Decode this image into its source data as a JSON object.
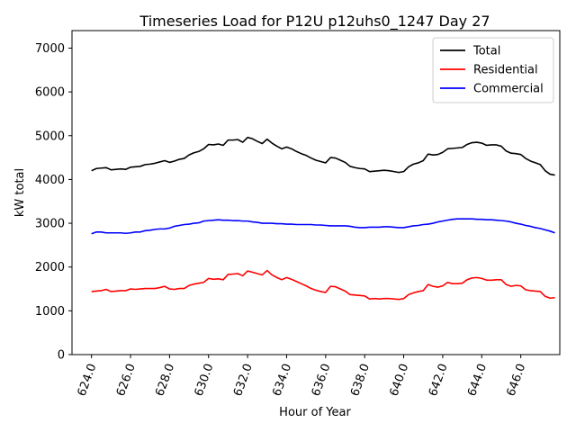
{
  "chart_data": {
    "type": "line",
    "title": "Timeseries Load for P12U p12uhs0_1247  Day 27",
    "xlabel": "Hour of Year",
    "ylabel": "kW total",
    "xlim": [
      623.0,
      648.0
    ],
    "ylim": [
      0,
      7400
    ],
    "xticks": [
      624.0,
      626.0,
      628.0,
      630.0,
      632.0,
      634.0,
      636.0,
      638.0,
      640.0,
      642.0,
      644.0,
      646.0
    ],
    "xtick_labels": [
      "624.0",
      "626.0",
      "628.0",
      "630.0",
      "632.0",
      "634.0",
      "636.0",
      "638.0",
      "640.0",
      "642.0",
      "644.0",
      "646.0"
    ],
    "yticks": [
      0,
      1000,
      2000,
      3000,
      4000,
      5000,
      6000,
      7000
    ],
    "ytick_labels": [
      "0",
      "1000",
      "2000",
      "3000",
      "4000",
      "5000",
      "6000",
      "7000"
    ],
    "legend_position": "top-right",
    "grid": false,
    "x": [
      624.0,
      624.25,
      624.5,
      624.75,
      625.0,
      625.25,
      625.5,
      625.75,
      626.0,
      626.25,
      626.5,
      626.75,
      627.0,
      627.25,
      627.5,
      627.75,
      628.0,
      628.25,
      628.5,
      628.75,
      629.0,
      629.25,
      629.5,
      629.75,
      630.0,
      630.25,
      630.5,
      630.75,
      631.0,
      631.25,
      631.5,
      631.75,
      632.0,
      632.25,
      632.5,
      632.75,
      633.0,
      633.25,
      633.5,
      633.75,
      634.0,
      634.25,
      634.5,
      634.75,
      635.0,
      635.25,
      635.5,
      635.75,
      636.0,
      636.25,
      636.5,
      636.75,
      637.0,
      637.25,
      637.5,
      637.75,
      638.0,
      638.25,
      638.5,
      638.75,
      639.0,
      639.25,
      639.5,
      639.75,
      640.0,
      640.25,
      640.5,
      640.75,
      641.0,
      641.25,
      641.5,
      641.75,
      642.0,
      642.25,
      642.5,
      642.75,
      643.0,
      643.25,
      643.5,
      643.75,
      644.0,
      644.25,
      644.5,
      644.75,
      645.0,
      645.25,
      645.5,
      645.75,
      646.0,
      646.25,
      646.5,
      646.75,
      647.0,
      647.25,
      647.5,
      647.75
    ],
    "series": [
      {
        "name": "Total",
        "color": "#000000",
        "values": [
          4200,
          4250,
          4260,
          4270,
          4220,
          4230,
          4240,
          4230,
          4280,
          4290,
          4300,
          4340,
          4350,
          4370,
          4400,
          4430,
          4390,
          4420,
          4460,
          4480,
          4560,
          4610,
          4640,
          4700,
          4800,
          4790,
          4810,
          4780,
          4900,
          4900,
          4910,
          4850,
          4960,
          4930,
          4870,
          4820,
          4920,
          4830,
          4760,
          4700,
          4740,
          4700,
          4640,
          4590,
          4550,
          4490,
          4440,
          4410,
          4380,
          4500,
          4490,
          4440,
          4390,
          4300,
          4270,
          4250,
          4240,
          4180,
          4190,
          4200,
          4210,
          4200,
          4180,
          4160,
          4180,
          4290,
          4350,
          4380,
          4430,
          4580,
          4560,
          4570,
          4620,
          4700,
          4710,
          4720,
          4730,
          4800,
          4840,
          4850,
          4830,
          4780,
          4790,
          4790,
          4760,
          4650,
          4600,
          4590,
          4570,
          4480,
          4420,
          4380,
          4340,
          4200,
          4120,
          4100
        ]
      },
      {
        "name": "Residential",
        "color": "#ff0000",
        "values": [
          1440,
          1450,
          1460,
          1490,
          1440,
          1450,
          1460,
          1460,
          1500,
          1490,
          1500,
          1510,
          1510,
          1510,
          1530,
          1560,
          1500,
          1490,
          1510,
          1510,
          1580,
          1610,
          1630,
          1650,
          1740,
          1720,
          1730,
          1710,
          1830,
          1840,
          1850,
          1800,
          1910,
          1880,
          1850,
          1820,
          1920,
          1820,
          1760,
          1710,
          1760,
          1720,
          1670,
          1620,
          1570,
          1510,
          1470,
          1440,
          1420,
          1560,
          1550,
          1500,
          1450,
          1370,
          1360,
          1350,
          1340,
          1270,
          1280,
          1270,
          1280,
          1280,
          1270,
          1260,
          1280,
          1370,
          1410,
          1440,
          1460,
          1600,
          1560,
          1540,
          1570,
          1650,
          1620,
          1620,
          1630,
          1710,
          1750,
          1760,
          1740,
          1700,
          1700,
          1710,
          1710,
          1600,
          1560,
          1580,
          1570,
          1480,
          1460,
          1450,
          1440,
          1330,
          1290,
          1300
        ]
      },
      {
        "name": "Commercial",
        "color": "#0000ff",
        "values": [
          2760,
          2800,
          2800,
          2780,
          2780,
          2780,
          2780,
          2770,
          2780,
          2800,
          2800,
          2830,
          2840,
          2860,
          2870,
          2870,
          2890,
          2930,
          2950,
          2970,
          2980,
          3000,
          3010,
          3050,
          3060,
          3070,
          3080,
          3070,
          3070,
          3060,
          3060,
          3050,
          3050,
          3030,
          3020,
          3000,
          3000,
          3000,
          2990,
          2990,
          2980,
          2980,
          2970,
          2970,
          2970,
          2970,
          2960,
          2960,
          2950,
          2940,
          2940,
          2940,
          2940,
          2930,
          2910,
          2900,
          2900,
          2910,
          2910,
          2910,
          2920,
          2920,
          2910,
          2900,
          2900,
          2920,
          2940,
          2950,
          2970,
          2980,
          3000,
          3030,
          3050,
          3070,
          3090,
          3100,
          3100,
          3100,
          3100,
          3090,
          3090,
          3080,
          3080,
          3070,
          3060,
          3050,
          3030,
          3000,
          2980,
          2950,
          2930,
          2900,
          2880,
          2850,
          2820,
          2780
        ]
      }
    ]
  }
}
